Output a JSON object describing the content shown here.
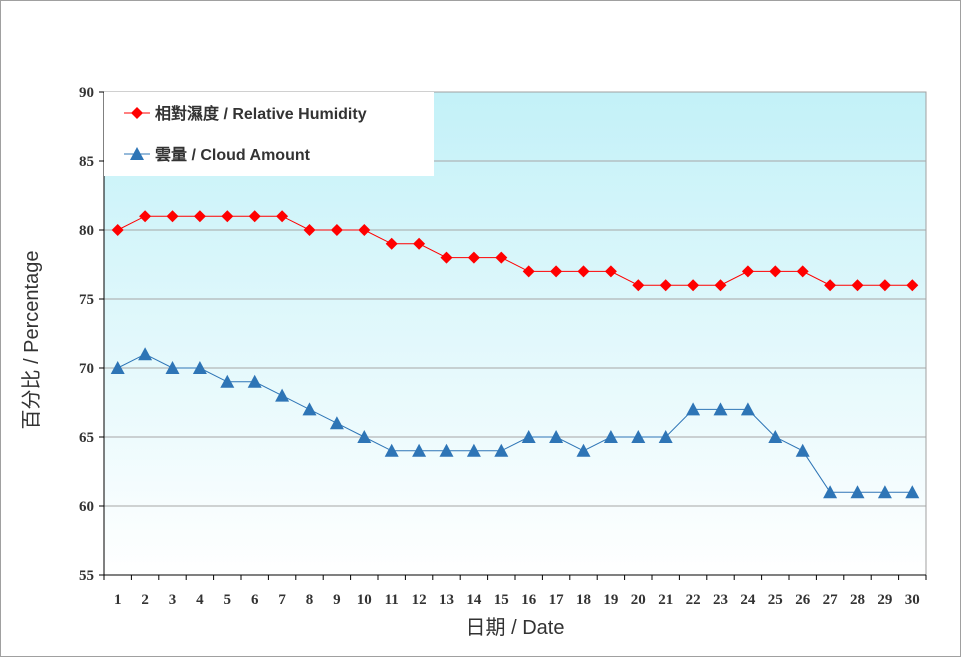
{
  "chart_data": {
    "type": "line",
    "xlabel": "日期 / Date",
    "ylabel": "百分比 / Percentage",
    "ylim": [
      55,
      90
    ],
    "yticks": [
      55,
      60,
      65,
      70,
      75,
      80,
      85,
      90
    ],
    "grid": true,
    "legend_placement": "top-left",
    "categories": [
      "1",
      "2",
      "3",
      "4",
      "5",
      "6",
      "7",
      "8",
      "9",
      "10",
      "11",
      "12",
      "13",
      "14",
      "15",
      "16",
      "17",
      "18",
      "19",
      "20",
      "21",
      "22",
      "23",
      "24",
      "25",
      "26",
      "27",
      "28",
      "29",
      "30"
    ],
    "series": [
      {
        "name": "相對濕度 / Relative Humidity",
        "color": "#ff0000",
        "marker": "diamond",
        "values": [
          80,
          81,
          81,
          81,
          81,
          81,
          81,
          80,
          80,
          80,
          79,
          79,
          78,
          78,
          78,
          77,
          77,
          77,
          77,
          76,
          76,
          76,
          76,
          77,
          77,
          77,
          76,
          76,
          76,
          76
        ]
      },
      {
        "name": "雲量 / Cloud Amount",
        "color": "#2e75b6",
        "marker": "triangle",
        "values": [
          70,
          71,
          70,
          70,
          69,
          69,
          68,
          67,
          66,
          65,
          64,
          64,
          64,
          64,
          64,
          65,
          65,
          64,
          65,
          65,
          65,
          67,
          67,
          67,
          65,
          64,
          61,
          61,
          61,
          61
        ]
      }
    ]
  }
}
